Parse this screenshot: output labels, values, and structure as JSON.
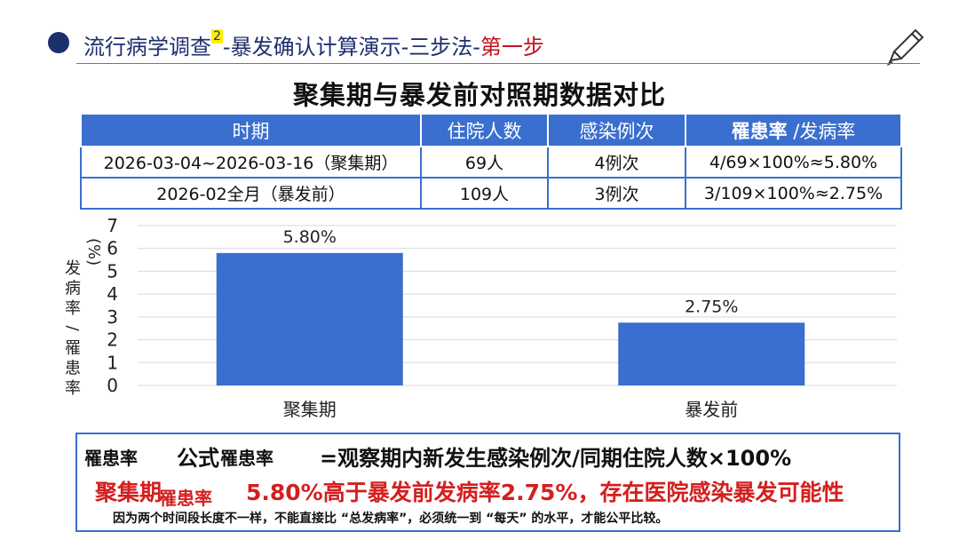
{
  "header": {
    "title_main": "流行病学调查",
    "title_sup": "2",
    "title_mid": "-暴发确认计算演示-三步法-",
    "title_step": "第一步",
    "accent_color": "#1e2f6e",
    "step_color": "#c4121f",
    "pencil_icon": "pencil-icon"
  },
  "subtitle": "聚集期与暴发前对照期数据对比",
  "table": {
    "headers": [
      "时期",
      "住院人数",
      "感染例次",
      "罹患率",
      "/发病率"
    ],
    "rows": [
      [
        "2026-03-04~2026-03-16（聚集期）",
        "69人",
        "4例次",
        "4/69×100%≈5.80%"
      ],
      [
        "2026-02全月（暴发前）",
        "109人",
        "3例次",
        "3/109×100%≈2.75%"
      ]
    ]
  },
  "chart_data": {
    "type": "bar",
    "categories": [
      "聚集期",
      "暴发前"
    ],
    "values": [
      5.8,
      2.75
    ],
    "data_labels": [
      "5.80%",
      "2.75%"
    ],
    "ylabel_top": "(%)",
    "ylabel_chars": [
      "发",
      "病",
      "率",
      "/",
      "罹",
      "患",
      "率"
    ],
    "ylim": [
      0,
      7
    ],
    "yticks": [
      "0",
      "1",
      "2",
      "3",
      "4",
      "5",
      "6",
      "7"
    ],
    "grid": true,
    "bar_color": "#3a6fcf"
  },
  "formula": {
    "line1_a": "罹患率",
    "line1_b": "公式",
    "line1_c": "罹患率",
    "line1_d": "=观察期内新发生感染例次/同期住院人数×100%",
    "line2_a": "聚集期",
    "line2_b": "罹患率",
    "line2_c": "5.80%高于暴发前发病率2.75%，存在医院感染暴发可能性",
    "line3": "因为两个时间段长度不一样，不能直接比 “总发病率”，必须统一到 “每天” 的水平，才能公平比较。"
  }
}
